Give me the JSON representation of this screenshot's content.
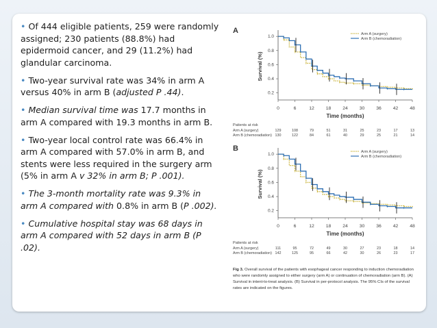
{
  "bullets": [
    {
      "parts": [
        {
          "t": "• ",
          "s": "dot"
        },
        {
          "t": "Of 444 eligible patients, 259 were randomly assigned; 230 patients (88.8%) had epidermoid cancer, and 29 (11.2%) had glandular carcinoma.",
          "s": ""
        }
      ]
    },
    {
      "parts": [
        {
          "t": "• ",
          "s": "dot"
        },
        {
          "t": "Two-year survival rate was 34% in arm A versus 40% in arm B (",
          "s": ""
        },
        {
          "t": "adjusted P  .44)",
          "s": "i"
        },
        {
          "t": ".",
          "s": ""
        }
      ]
    },
    {
      "parts": [
        {
          "t": "• ",
          "s": "dot"
        },
        {
          "t": "Median survival time was ",
          "s": "i"
        },
        {
          "t": "17.7 months in arm A compared with 19.3 months in arm B.",
          "s": ""
        }
      ]
    },
    {
      "parts": [
        {
          "t": "• ",
          "s": "dot"
        },
        {
          "t": "Two-year local control rate was 66.4% in arm A compared with 57.0% in arm B, and stents were less required in the surgery arm (5% in arm A ",
          "s": ""
        },
        {
          "t": "v 32% in arm B; P  .001).",
          "s": "i"
        }
      ]
    },
    {
      "parts": [
        {
          "t": "• ",
          "s": "dot"
        },
        {
          "t": "The 3-month mortality rate was 9.3% in arm A compared with ",
          "s": "i"
        },
        {
          "t": "0.8% in arm B (",
          "s": ""
        },
        {
          "t": "P  .002).",
          "s": "i"
        }
      ]
    },
    {
      "parts": [
        {
          "t": "• ",
          "s": "dot"
        },
        {
          "t": "Cumulative hospital stay was 68 days in arm A compared with 52 days in arm B (",
          "s": "i"
        },
        {
          "t": "P  .02).",
          "s": "i"
        }
      ]
    }
  ],
  "chart_data": [
    {
      "panel": "A",
      "type": "line",
      "ylabel": "Survival (%)",
      "xlabel": "Time (months)",
      "xticks": [
        0,
        6,
        12,
        18,
        24,
        30,
        36,
        42,
        48
      ],
      "yticks": [
        "0.2",
        "0.4",
        "0.6",
        "0.8",
        "1.0"
      ],
      "ylim": [
        0.1,
        1.05
      ],
      "xlim": [
        0,
        48
      ],
      "legend": [
        "Arm A (surgery)",
        "Arm B (chemoradiation)"
      ],
      "series": [
        {
          "name": "Arm A (surgery)",
          "color": "#c9b33a",
          "dashed": true,
          "x": [
            0,
            2,
            4,
            6,
            8,
            10,
            12,
            14,
            16,
            18,
            20,
            22,
            24,
            27,
            30,
            33,
            36,
            39,
            42,
            45,
            48
          ],
          "y": [
            1.0,
            0.95,
            0.85,
            0.78,
            0.7,
            0.62,
            0.53,
            0.47,
            0.43,
            0.4,
            0.37,
            0.35,
            0.34,
            0.33,
            0.31,
            0.3,
            0.29,
            0.28,
            0.27,
            0.26,
            0.25
          ]
        },
        {
          "name": "Arm B (chemoradiation)",
          "color": "#2d6fb3",
          "dashed": false,
          "x": [
            0,
            2,
            4,
            6,
            8,
            10,
            12,
            14,
            16,
            18,
            20,
            22,
            24,
            27,
            30,
            33,
            36,
            39,
            42,
            45,
            48
          ],
          "y": [
            1.0,
            0.98,
            0.94,
            0.88,
            0.78,
            0.68,
            0.58,
            0.52,
            0.48,
            0.45,
            0.43,
            0.41,
            0.4,
            0.37,
            0.33,
            0.3,
            0.27,
            0.26,
            0.25,
            0.25,
            0.25
          ]
        }
      ],
      "at_risk_label": "Patients at risk",
      "at_risk": [
        {
          "name": "Arm A (surgery)",
          "values": [
            "129",
            "108",
            "79",
            "51",
            "31",
            "25",
            "23",
            "17",
            "13"
          ]
        },
        {
          "name": "Arm B (chemoradiation)",
          "values": [
            "130",
            "122",
            "84",
            "61",
            "40",
            "29",
            "25",
            "21",
            "14"
          ]
        }
      ]
    },
    {
      "panel": "B",
      "type": "line",
      "ylabel": "Survival (%)",
      "xlabel": "Time (months)",
      "xticks": [
        0,
        6,
        12,
        18,
        24,
        30,
        36,
        42,
        48
      ],
      "yticks": [
        "0.2",
        "0.4",
        "0.6",
        "0.8",
        "1.0"
      ],
      "ylim": [
        0.1,
        1.05
      ],
      "xlim": [
        0,
        48
      ],
      "legend": [
        "Arm A (surgery)",
        "Arm B (chemoradiation)"
      ],
      "series": [
        {
          "name": "Arm A (surgery)",
          "color": "#c9b33a",
          "dashed": true,
          "x": [
            0,
            2,
            4,
            6,
            8,
            10,
            12,
            14,
            16,
            18,
            20,
            22,
            24,
            27,
            30,
            33,
            36,
            39,
            42,
            45,
            48
          ],
          "y": [
            1.0,
            0.93,
            0.84,
            0.76,
            0.68,
            0.6,
            0.52,
            0.47,
            0.43,
            0.4,
            0.38,
            0.36,
            0.34,
            0.33,
            0.31,
            0.3,
            0.29,
            0.28,
            0.27,
            0.26,
            0.25
          ]
        },
        {
          "name": "Arm B (chemoradiation)",
          "color": "#2d6fb3",
          "dashed": false,
          "x": [
            0,
            2,
            4,
            6,
            8,
            10,
            12,
            14,
            16,
            18,
            20,
            22,
            24,
            27,
            30,
            33,
            36,
            39,
            42,
            45,
            48
          ],
          "y": [
            1.0,
            0.98,
            0.93,
            0.86,
            0.76,
            0.66,
            0.57,
            0.51,
            0.47,
            0.44,
            0.42,
            0.4,
            0.39,
            0.36,
            0.32,
            0.29,
            0.27,
            0.26,
            0.24,
            0.24,
            0.24
          ]
        }
      ],
      "at_risk_label": "Patients at risk",
      "at_risk": [
        {
          "name": "Arm A (surgery)",
          "values": [
            "111",
            "95",
            "72",
            "49",
            "30",
            "27",
            "23",
            "18",
            "14"
          ]
        },
        {
          "name": "Arm B (chemoradiation)",
          "values": [
            "142",
            "125",
            "95",
            "66",
            "42",
            "30",
            "26",
            "23",
            "17"
          ]
        }
      ]
    }
  ],
  "caption": {
    "label": "Fig 3.",
    "text": " Overall survival of the patients with esophageal cancer responding to induction chemoradiation who were randomly assigned to either surgery (arm A) or continuation of chemoradiation (arm B). (A) Survival in intent-to-treat analysis. (B) Survival in per-protocol analysis. The 95% CIs of the survival rates are indicated on the figures."
  }
}
